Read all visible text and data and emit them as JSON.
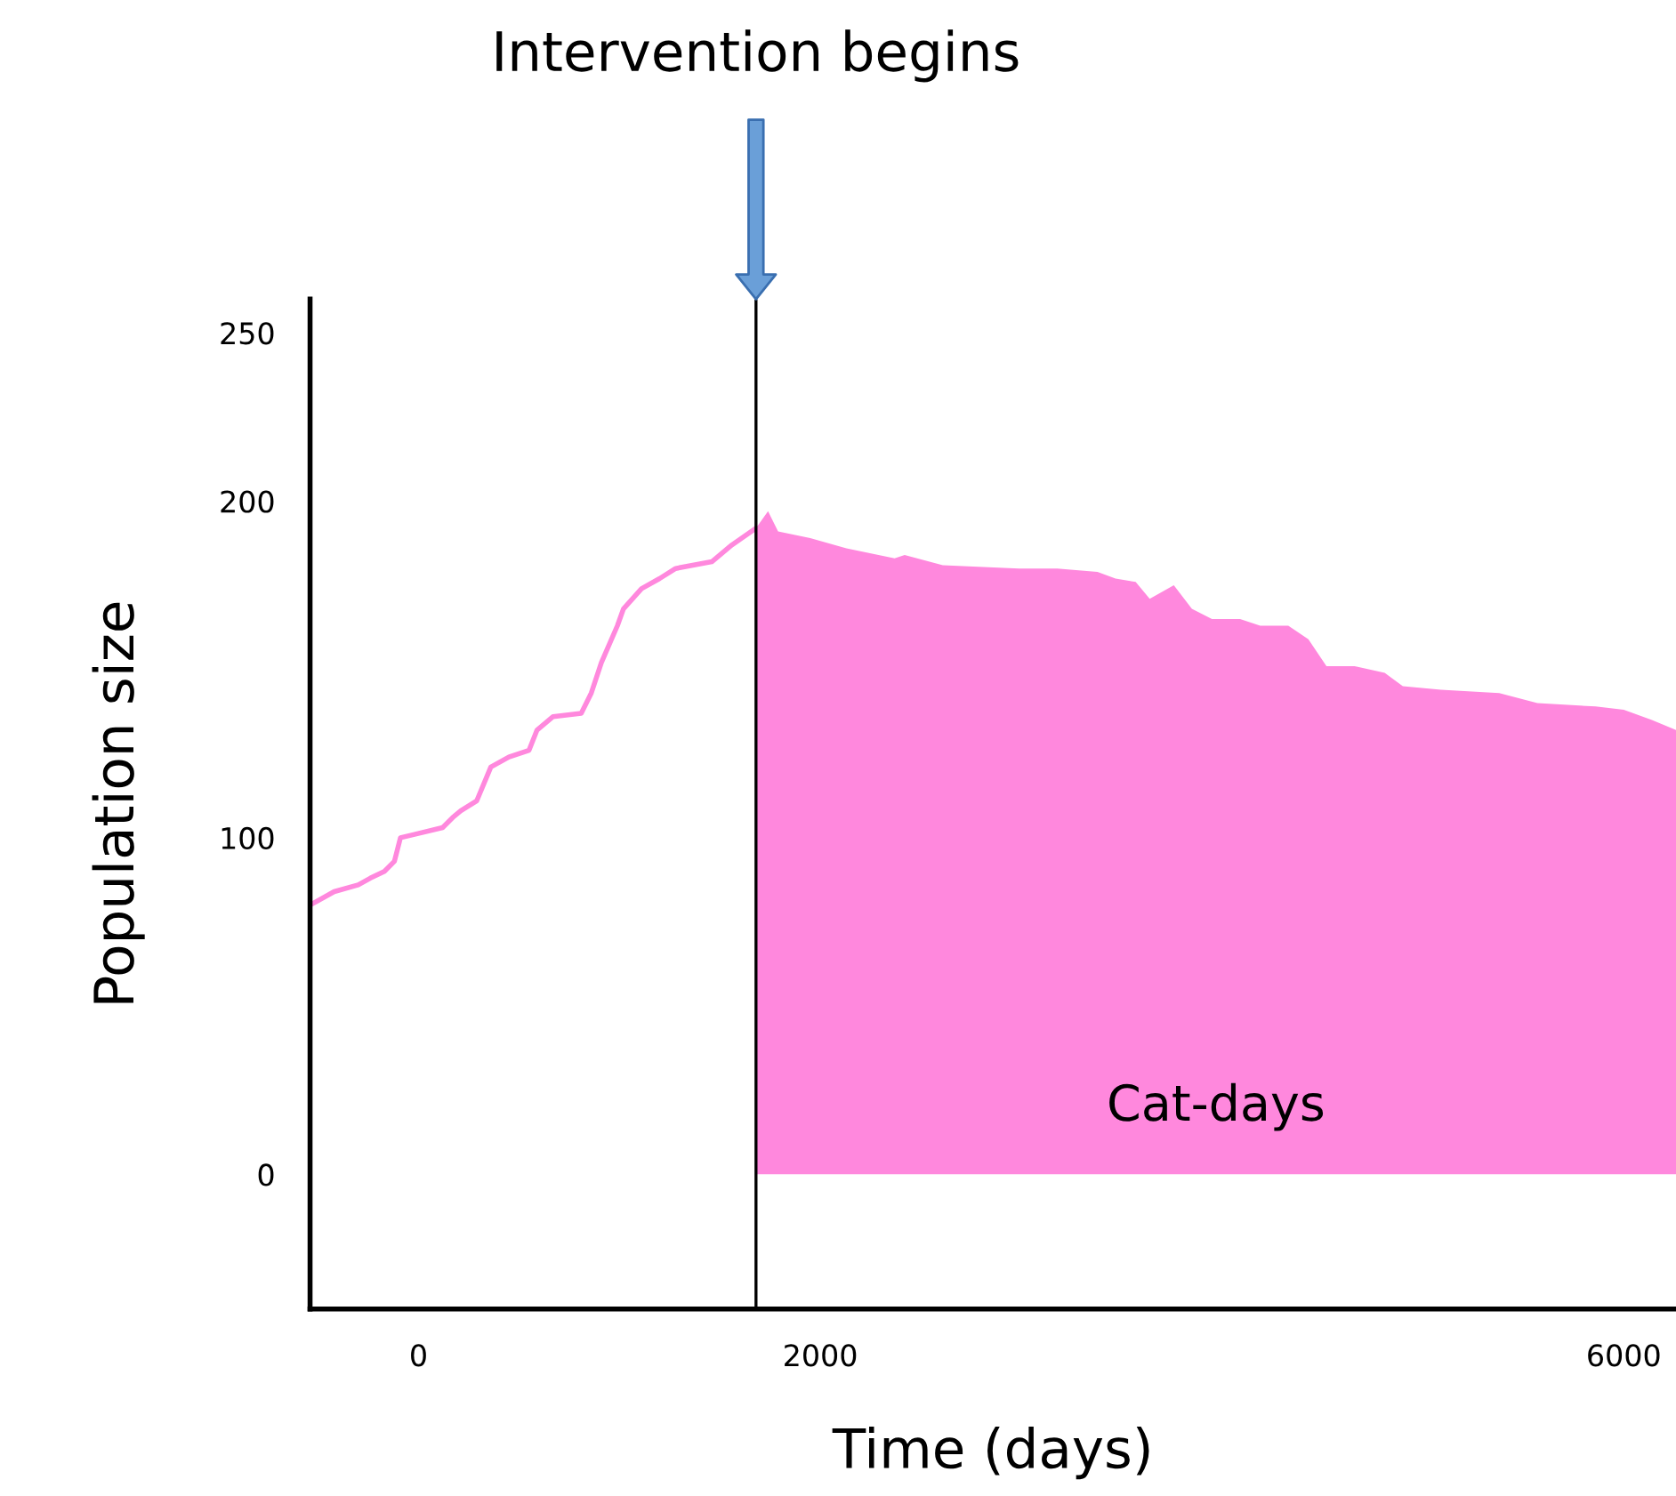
{
  "chart_data": {
    "type": "line",
    "xlabel": "Time (days)",
    "ylabel": "Population size",
    "xlim": [
      -540,
      6260
    ],
    "ylim": [
      -40,
      260
    ],
    "xticks": [
      0,
      2000,
      6000
    ],
    "yticks": [
      0,
      100,
      200,
      250
    ],
    "grid": false,
    "legend": false,
    "marker": "none",
    "line_style": "solid",
    "ref_lines": [
      {
        "axis": "x",
        "value": 1680,
        "color": "#000000"
      }
    ],
    "annotations": [
      "Intervention begins",
      "Cat-days"
    ],
    "series": [
      {
        "color": "#ff88dd",
        "x": [
          -540,
          -420,
          -300,
          -240,
          -170,
          -120,
          -90,
          -20,
          120,
          170,
          210,
          290,
          360,
          450,
          550,
          590,
          670,
          810,
          860,
          910,
          990,
          1020,
          1110,
          1200,
          1280,
          1460,
          1560,
          1680
        ],
        "values": [
          80,
          84,
          86,
          88,
          90,
          93,
          100,
          101,
          103,
          106,
          108,
          111,
          121,
          124,
          126,
          132,
          136,
          137,
          143,
          152,
          163,
          168,
          174,
          177,
          180,
          182,
          187,
          192
        ]
      },
      {
        "type": "area",
        "color": "#ff88dd",
        "x": [
          1680,
          1740,
          1790,
          1950,
          2130,
          2370,
          2420,
          2610,
          2990,
          3180,
          3380,
          3470,
          3570,
          3640,
          3760,
          3850,
          3950,
          4090,
          4190,
          4330,
          4430,
          4520,
          4660,
          4810,
          4900,
          5090,
          5380,
          5570,
          5860,
          6000,
          6140,
          6260
        ],
        "values": [
          192,
          197,
          191,
          189,
          186,
          183,
          184,
          181,
          180,
          180,
          179,
          177,
          176,
          171,
          175,
          168,
          165,
          165,
          163,
          163,
          159,
          151,
          151,
          149,
          145,
          144,
          143,
          140,
          139,
          138,
          135,
          132
        ]
      }
    ]
  }
}
